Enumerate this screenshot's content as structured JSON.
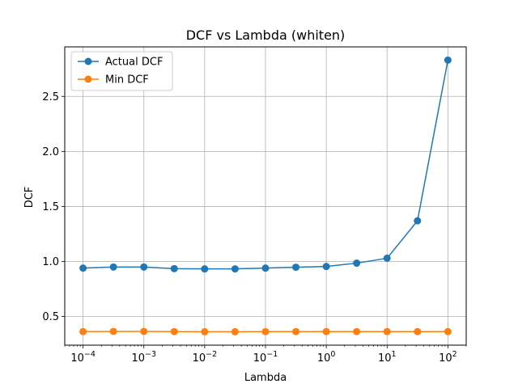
{
  "chart_data": {
    "type": "line",
    "title": "DCF vs Lambda (whiten)",
    "xlabel": "Lambda",
    "ylabel": "DCF",
    "xscale": "log",
    "grid": true,
    "legend_position": "top-left",
    "xlim": [
      5e-05,
      200
    ],
    "ylim": [
      0.24,
      2.95
    ],
    "x": [
      0.0001,
      0.000316,
      0.001,
      0.00316,
      0.01,
      0.0316,
      0.1,
      0.316,
      1,
      3.16,
      10,
      31.6,
      100
    ],
    "series": [
      {
        "name": "Actual DCF",
        "color": "#1f77b4",
        "values": [
          0.94,
          0.95,
          0.95,
          0.935,
          0.933,
          0.933,
          0.94,
          0.948,
          0.955,
          0.985,
          1.03,
          1.37,
          2.83
        ]
      },
      {
        "name": "Min DCF",
        "color": "#ff7f0e",
        "values": [
          0.363,
          0.365,
          0.365,
          0.363,
          0.362,
          0.362,
          0.363,
          0.363,
          0.363,
          0.363,
          0.363,
          0.363,
          0.363
        ]
      }
    ],
    "x_ticks": [
      {
        "value": 0.0001,
        "base": "10",
        "exp": "−4"
      },
      {
        "value": 0.001,
        "base": "10",
        "exp": "−3"
      },
      {
        "value": 0.01,
        "base": "10",
        "exp": "−2"
      },
      {
        "value": 0.1,
        "base": "10",
        "exp": "−1"
      },
      {
        "value": 1,
        "base": "10",
        "exp": "0"
      },
      {
        "value": 10,
        "base": "10",
        "exp": "1"
      },
      {
        "value": 100,
        "base": "10",
        "exp": "2"
      }
    ],
    "y_ticks": [
      {
        "value": 0.5,
        "label": "0.5"
      },
      {
        "value": 1.0,
        "label": "1.0"
      },
      {
        "value": 1.5,
        "label": "1.5"
      },
      {
        "value": 2.0,
        "label": "2.0"
      },
      {
        "value": 2.5,
        "label": "2.5"
      }
    ]
  }
}
